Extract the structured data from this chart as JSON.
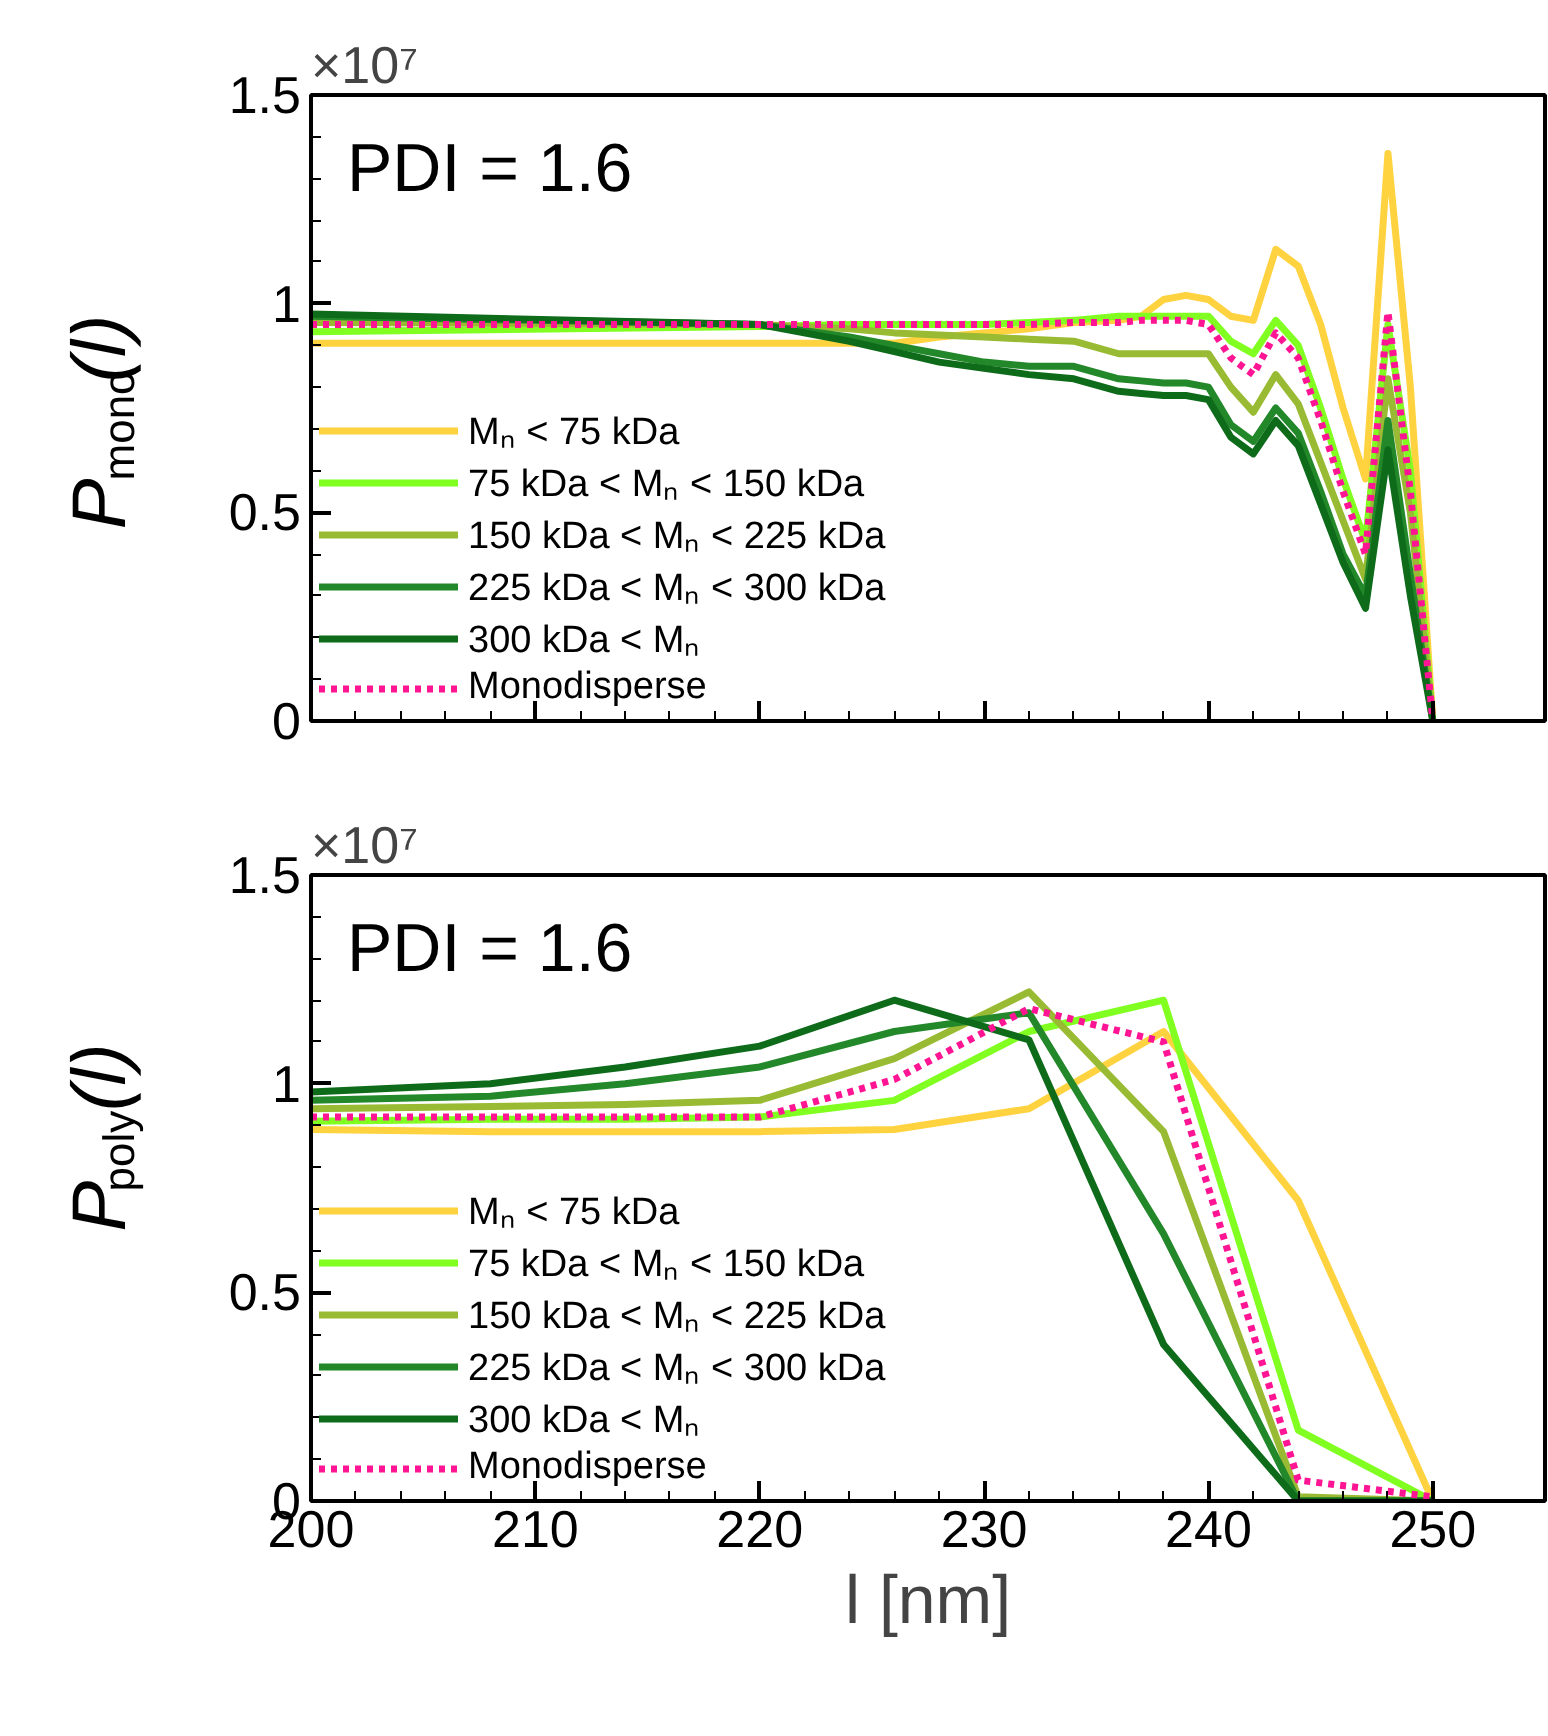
{
  "chart_data": [
    {
      "type": "line",
      "ylabel": "P$_{mono}$(l)",
      "annotations": [
        "×10⁷",
        "PDI = 1.6"
      ],
      "xlim": [
        200,
        255
      ],
      "ylim": [
        0,
        1.5
      ],
      "xticks": [
        200,
        210,
        220,
        230,
        240,
        250
      ],
      "yticks": [
        0,
        0.5,
        1,
        1.5
      ],
      "tick_labels": "y",
      "grid": false,
      "legend": "bottom left",
      "line_style": "solid",
      "marker": "none",
      "x": [
        200,
        220,
        224,
        226,
        228,
        230,
        232,
        234,
        236,
        237,
        238,
        239,
        240,
        241,
        242,
        243,
        244,
        245,
        246,
        247,
        248,
        249,
        250
      ],
      "series": [
        {
          "name": "Mₙ < 75 kDa",
          "color": "#ffd23f",
          "values": [
            0.905,
            0.905,
            0.905,
            0.905,
            0.92,
            0.93,
            0.94,
            0.955,
            0.96,
            0.97,
            1.01,
            1.02,
            1.01,
            0.97,
            0.96,
            1.13,
            1.09,
            0.95,
            0.75,
            0.58,
            1.36,
            0.8,
            0
          ]
        },
        {
          "name": "75 kDa < Mₙ < 150 kDa",
          "color": "#80ff20",
          "values": [
            0.933,
            0.945,
            0.95,
            0.95,
            0.95,
            0.95,
            0.955,
            0.96,
            0.97,
            0.97,
            0.97,
            0.97,
            0.97,
            0.91,
            0.88,
            0.96,
            0.9,
            0.75,
            0.58,
            0.43,
            0.95,
            0.6,
            0
          ]
        },
        {
          "name": "150 kDa < Mₙ < 225 kDa",
          "color": "#99bb33",
          "values": [
            0.955,
            0.95,
            0.94,
            0.93,
            0.925,
            0.92,
            0.915,
            0.91,
            0.88,
            0.88,
            0.88,
            0.88,
            0.88,
            0.8,
            0.74,
            0.83,
            0.76,
            0.62,
            0.48,
            0.34,
            0.82,
            0.5,
            0
          ]
        },
        {
          "name": "225 kDa < Mₙ < 300 kDa",
          "color": "#22882a",
          "values": [
            0.97,
            0.95,
            0.92,
            0.9,
            0.88,
            0.86,
            0.85,
            0.85,
            0.82,
            0.815,
            0.81,
            0.81,
            0.8,
            0.71,
            0.67,
            0.75,
            0.69,
            0.55,
            0.4,
            0.3,
            0.72,
            0.35,
            0
          ]
        },
        {
          "name": "300 kDa < Mₙ",
          "color": "#0d6b1a",
          "values": [
            0.975,
            0.95,
            0.91,
            0.885,
            0.86,
            0.845,
            0.83,
            0.82,
            0.79,
            0.785,
            0.78,
            0.78,
            0.77,
            0.68,
            0.64,
            0.72,
            0.66,
            0.52,
            0.38,
            0.27,
            0.65,
            0.3,
            0
          ]
        },
        {
          "name": "Monodisperse",
          "color": "#ff1493",
          "line_style": "dotted",
          "values": [
            0.95,
            0.95,
            0.95,
            0.95,
            0.95,
            0.95,
            0.95,
            0.955,
            0.955,
            0.96,
            0.96,
            0.96,
            0.95,
            0.87,
            0.83,
            0.93,
            0.87,
            0.72,
            0.55,
            0.4,
            0.98,
            0.55,
            0
          ]
        }
      ]
    },
    {
      "type": "line",
      "xlabel": "l [nm]",
      "ylabel": "P$_{poly}$(l)",
      "annotations": [
        "×10⁷",
        "PDI = 1.6"
      ],
      "xlim": [
        200,
        255
      ],
      "ylim": [
        0,
        1.5
      ],
      "xticks": [
        200,
        210,
        220,
        230,
        240,
        250
      ],
      "yticks": [
        0,
        0.5,
        1,
        1.5
      ],
      "grid": false,
      "legend": "bottom left",
      "line_style": "solid",
      "marker": "none",
      "x": [
        200,
        208,
        214,
        220,
        226,
        232,
        238,
        244,
        250
      ],
      "series": [
        {
          "name": "Mₙ < 75 kDa",
          "color": "#ffd23f",
          "values": [
            0.89,
            0.885,
            0.885,
            0.885,
            0.89,
            0.94,
            1.125,
            0.72,
            0
          ]
        },
        {
          "name": "75 kDa < Mₙ < 150 kDa",
          "color": "#80ff20",
          "values": [
            0.91,
            0.915,
            0.915,
            0.92,
            0.96,
            1.125,
            1.2,
            0.17,
            0
          ]
        },
        {
          "name": "150 kDa < Mₙ < 225 kDa",
          "color": "#99bb33",
          "values": [
            0.94,
            0.945,
            0.95,
            0.96,
            1.06,
            1.22,
            0.885,
            0.01,
            0
          ]
        },
        {
          "name": "225 kDa < Mₙ < 300 kDa",
          "color": "#22882a",
          "values": [
            0.96,
            0.97,
            1.0,
            1.04,
            1.125,
            1.17,
            0.64,
            0,
            0
          ]
        },
        {
          "name": "300 kDa < Mₙ",
          "color": "#0d6b1a",
          "values": [
            0.98,
            1.0,
            1.04,
            1.09,
            1.2,
            1.105,
            0.375,
            0,
            0
          ]
        },
        {
          "name": "Monodisperse",
          "color": "#ff1493",
          "line_style": "dotted",
          "values": [
            0.92,
            0.92,
            0.92,
            0.92,
            1.01,
            1.18,
            1.1,
            0.05,
            0.01
          ]
        }
      ]
    }
  ]
}
